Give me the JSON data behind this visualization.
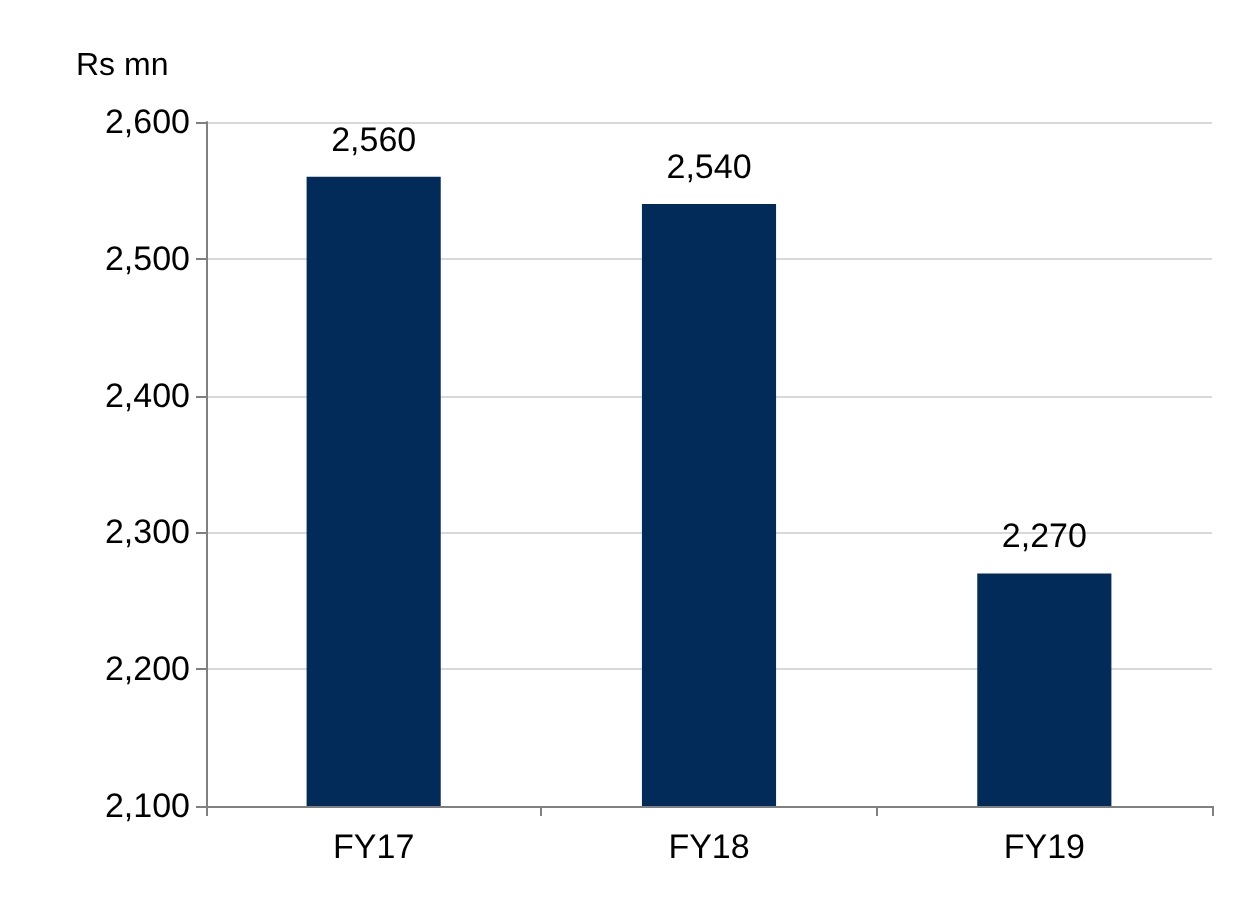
{
  "chart_data": {
    "type": "bar",
    "ylabel": "Rs mn",
    "categories": [
      "FY17",
      "FY18",
      "FY19"
    ],
    "values": [
      2560,
      2540,
      2270
    ],
    "color": "#022b5a",
    "value_labels": [
      "2,560",
      "2,540",
      "2,270"
    ],
    "ylim": [
      2100,
      2600
    ],
    "yticks": [
      {
        "value": 2100,
        "label": "2,100"
      },
      {
        "value": 2200,
        "label": "2,200"
      },
      {
        "value": 2300,
        "label": "2,300"
      },
      {
        "value": 2400,
        "label": "2,400"
      },
      {
        "value": 2500,
        "label": "2,500"
      },
      {
        "value": 2600,
        "label": "2,600"
      }
    ],
    "grid": "y"
  }
}
